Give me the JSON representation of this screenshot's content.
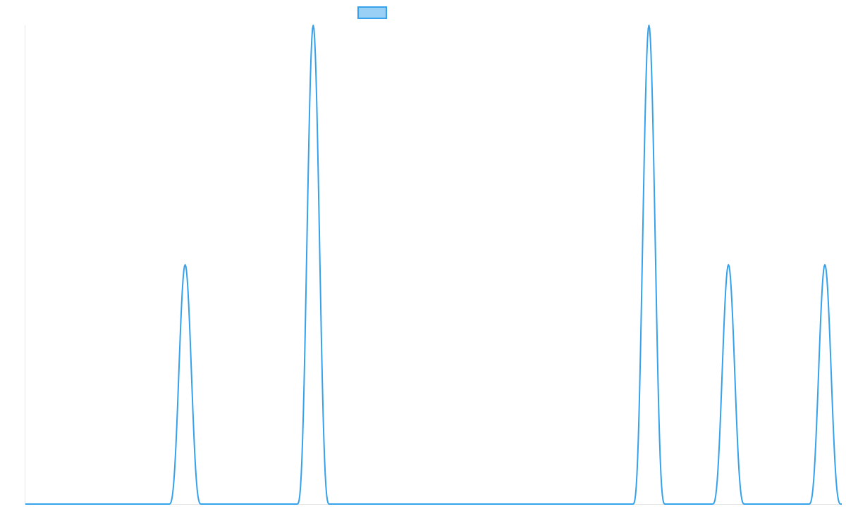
{
  "chart_data": {
    "type": "line",
    "title": "",
    "xlabel": "",
    "ylabel": "",
    "x_range": [
      0,
      1160
    ],
    "ylim": [
      0,
      2
    ],
    "grid": false,
    "legend_position": "top-center",
    "series": [
      {
        "name": "",
        "color": "#36a2eb",
        "fill": "#9ad0f5",
        "peaks": [
          {
            "center": 227,
            "height": 1,
            "half_width": 23
          },
          {
            "center": 409,
            "height": 2,
            "half_width": 23
          },
          {
            "center": 886,
            "height": 2,
            "half_width": 23
          },
          {
            "center": 999,
            "height": 1,
            "half_width": 23
          },
          {
            "center": 1136,
            "height": 1,
            "half_width": 23
          }
        ]
      }
    ]
  }
}
